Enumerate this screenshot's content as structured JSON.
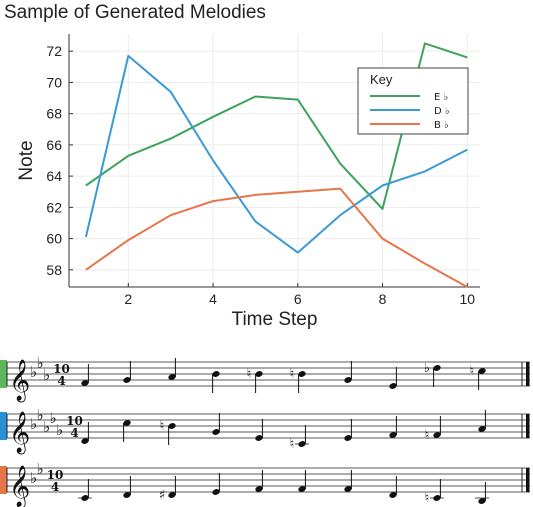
{
  "chart_data": {
    "type": "line",
    "title": "Sample of Generated Melodies",
    "xlabel": "Time Step",
    "ylabel": "Note",
    "xlim": [
      0.6,
      10.3
    ],
    "ylim": [
      56.9,
      73.1
    ],
    "xticks": [
      2,
      4,
      6,
      8,
      10
    ],
    "yticks": [
      58,
      60,
      62,
      64,
      66,
      68,
      70,
      72
    ],
    "grid": true,
    "legend": {
      "title": "Key",
      "position": "top-right"
    },
    "x": [
      1,
      2,
      3,
      4,
      5,
      6,
      7,
      8,
      9,
      10
    ],
    "series": [
      {
        "name": "E ♭",
        "color": "#3da35a",
        "values": [
          63.4,
          65.3,
          66.4,
          67.8,
          69.1,
          68.9,
          64.8,
          61.9,
          72.5,
          71.6
        ]
      },
      {
        "name": "D ♭",
        "color": "#3b9ad6",
        "values": [
          60.1,
          71.7,
          69.4,
          65.0,
          61.1,
          59.1,
          61.5,
          63.4,
          64.3,
          65.7
        ]
      },
      {
        "name": "B ♭",
        "color": "#e8744a",
        "values": [
          58.0,
          59.9,
          61.5,
          62.4,
          62.8,
          63.0,
          63.2,
          60.0,
          58.4,
          56.9
        ]
      }
    ]
  },
  "score": {
    "time_signature": {
      "top": "10",
      "bottom": "4"
    },
    "staves": [
      {
        "key": "E ♭",
        "color": "#5cb85c",
        "key_flats": [
          "B",
          "E",
          "A"
        ],
        "notes": [
          {
            "step": 1,
            "accidental": ""
          },
          {
            "step": 2,
            "accidental": ""
          },
          {
            "step": 3,
            "accidental": ""
          },
          {
            "step": 4,
            "accidental": ""
          },
          {
            "step": 4,
            "accidental": "natural"
          },
          {
            "step": 4,
            "accidental": "natural"
          },
          {
            "step": 2,
            "accidental": ""
          },
          {
            "step": 0,
            "accidental": ""
          },
          {
            "step": 6,
            "accidental": "flat"
          },
          {
            "step": 5,
            "accidental": "natural"
          }
        ]
      },
      {
        "key": "D ♭",
        "color": "#2a8fd6",
        "key_flats": [
          "B",
          "E",
          "A",
          "D",
          "G"
        ],
        "notes": [
          {
            "step": -1,
            "accidental": ""
          },
          {
            "step": 5,
            "accidental": ""
          },
          {
            "step": 4,
            "accidental": "natural"
          },
          {
            "step": 2,
            "accidental": ""
          },
          {
            "step": 0,
            "accidental": ""
          },
          {
            "step": -2,
            "accidental": "natural"
          },
          {
            "step": 0,
            "accidental": ""
          },
          {
            "step": 1,
            "accidental": ""
          },
          {
            "step": 1,
            "accidental": "natural"
          },
          {
            "step": 3,
            "accidental": ""
          }
        ]
      },
      {
        "key": "B ♭",
        "color": "#e8744a",
        "key_flats": [
          "B",
          "E"
        ],
        "notes": [
          {
            "step": -2,
            "accidental": ""
          },
          {
            "step": -1,
            "accidental": ""
          },
          {
            "step": -1,
            "accidental": "sharp"
          },
          {
            "step": 0,
            "accidental": ""
          },
          {
            "step": 1,
            "accidental": ""
          },
          {
            "step": 1,
            "accidental": ""
          },
          {
            "step": 1,
            "accidental": ""
          },
          {
            "step": -1,
            "accidental": ""
          },
          {
            "step": -2,
            "accidental": "natural"
          },
          {
            "step": -3,
            "accidental": ""
          }
        ]
      }
    ]
  }
}
